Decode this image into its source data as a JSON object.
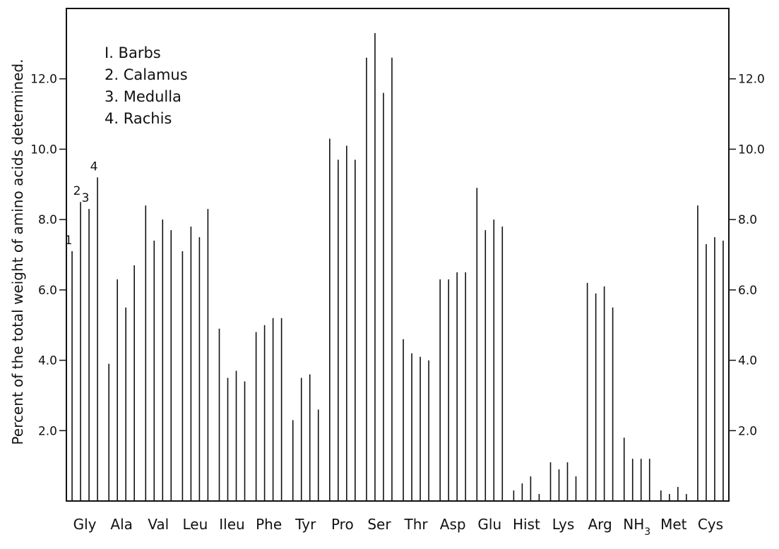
{
  "chart_data": {
    "type": "bar",
    "ylabel": "Percent of the total weight of amino acids determined.",
    "ylim": [
      0,
      14
    ],
    "yticks": [
      2.0,
      4.0,
      6.0,
      8.0,
      10.0,
      12.0
    ],
    "ytick_labels": [
      "2.0",
      "4.0",
      "6.0",
      "8.0",
      "10.0",
      "12.0"
    ],
    "grid": false,
    "legend": {
      "placement": "top-left",
      "entries": [
        "I. Barbs",
        "2. Calamus",
        "3. Medulla",
        "4. Rachis"
      ]
    },
    "bar_annotations": [
      "1",
      "2",
      "3",
      "4"
    ],
    "categories": [
      {
        "label": "Gly"
      },
      {
        "label": "Ala"
      },
      {
        "label": "Val"
      },
      {
        "label": "Leu"
      },
      {
        "label": "Ileu"
      },
      {
        "label": "Phe"
      },
      {
        "label": "Tyr"
      },
      {
        "label": "Pro"
      },
      {
        "label": "Ser"
      },
      {
        "label": "Thr"
      },
      {
        "label": "Asp"
      },
      {
        "label": "Glu"
      },
      {
        "label": "Hist"
      },
      {
        "label": "Lys"
      },
      {
        "label": "Arg"
      },
      {
        "label": "NH",
        "sub": "3"
      },
      {
        "label": "Met"
      },
      {
        "label": "Cys"
      }
    ],
    "series": [
      {
        "name": "Barbs",
        "values": [
          7.1,
          3.9,
          8.4,
          7.1,
          4.9,
          4.8,
          2.3,
          10.3,
          12.6,
          4.6,
          6.3,
          8.9,
          0.3,
          1.1,
          6.2,
          1.8,
          0.3,
          8.4
        ]
      },
      {
        "name": "Calamus",
        "values": [
          8.5,
          6.3,
          7.4,
          7.8,
          3.5,
          5.0,
          3.5,
          9.7,
          13.3,
          4.2,
          6.3,
          7.7,
          0.5,
          0.9,
          5.9,
          1.2,
          0.2,
          7.3
        ]
      },
      {
        "name": "Medulla",
        "values": [
          8.3,
          5.5,
          8.0,
          7.5,
          3.7,
          5.2,
          3.6,
          10.1,
          11.6,
          4.1,
          6.5,
          8.0,
          0.7,
          1.1,
          6.1,
          1.2,
          0.4,
          7.5
        ]
      },
      {
        "name": "Rachis",
        "values": [
          9.2,
          6.7,
          7.7,
          8.3,
          3.4,
          5.2,
          2.6,
          9.7,
          12.6,
          4.0,
          6.5,
          7.8,
          0.2,
          0.7,
          5.5,
          1.2,
          0.2,
          7.4
        ]
      }
    ]
  }
}
